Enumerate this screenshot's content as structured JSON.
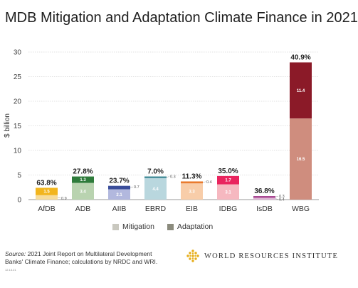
{
  "title": "MDB Mitigation and Adaptation Climate Finance in 2021",
  "colors": {
    "mitigation_light": "#c9c8bf",
    "adaptation_dark": "#8b8b7d",
    "wri_gold": "#e6ae1c"
  },
  "legend": {
    "mitigation_label": "Mitigation",
    "adaptation_label": "Adaptation"
  },
  "source": {
    "prefix": "Source:",
    "text": "2021 Joint Report on Multilateral Development Banks' Climate Finance; calculations by NRDC and WRI.",
    "tiny_code": "12.13.21"
  },
  "branding": {
    "org_name": "WORLD RESOURCES INSTITUTE",
    "logo_icon": "wri-logo-icon"
  },
  "chart_data": {
    "type": "bar",
    "stacked": true,
    "ylabel": "$ billion",
    "xlabel": "",
    "ylim": [
      0,
      30
    ],
    "yticks": [
      0,
      5,
      10,
      15,
      20,
      25,
      30
    ],
    "grid": true,
    "legend_position": "bottom",
    "categories": [
      "AfDB",
      "ADB",
      "AIIB",
      "EBRD",
      "EIB",
      "IDBG",
      "IsDB",
      "WBG"
    ],
    "adaptation_share_labels": [
      "63.8%",
      "27.8%",
      "23.7%",
      "7.0%",
      "11.3%",
      "35.0%",
      "36.8%",
      "40.9%"
    ],
    "series": [
      {
        "name": "Mitigation",
        "values": [
          0.9,
          3.4,
          2.1,
          4.4,
          3.3,
          3.1,
          0.4,
          16.5
        ],
        "labels": [
          "0.9",
          "3.4",
          "2.1",
          "4.4",
          "3.3",
          "3.1",
          "0.4",
          "16.5"
        ],
        "colors": [
          "#f7dc9a",
          "#b9d3b0",
          "#b2b8de",
          "#b9d7de",
          "#f8cda9",
          "#f6b8c0",
          "#ddb3d3",
          "#cf8d7e"
        ]
      },
      {
        "name": "Adaptation",
        "values": [
          1.5,
          1.3,
          0.7,
          0.3,
          0.4,
          1.7,
          0.3,
          11.4
        ],
        "labels": [
          "1.5",
          "1.3",
          "0.7",
          "0.3",
          "0.4",
          "1.7",
          "0.3",
          "11.4"
        ],
        "colors": [
          "#f2b51d",
          "#2e7b3b",
          "#3a4d9a",
          "#2e7f8c",
          "#e97b2e",
          "#e9245e",
          "#9a2a80",
          "#8b1a28"
        ]
      }
    ]
  }
}
